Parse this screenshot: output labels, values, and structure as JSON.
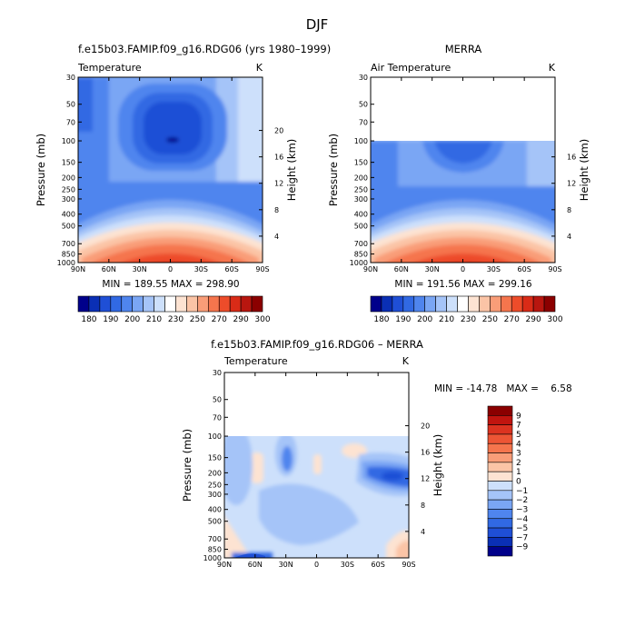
{
  "figure": {
    "title": "DJF",
    "units": "K",
    "pressure_label": "Pressure (mb)",
    "height_label": "Height (km)"
  },
  "panels": [
    {
      "header": "f.e15b03.FAMIP.f09_g16.RDG06 (yrs 1980–1999)",
      "variable": "Temperature",
      "units": "K",
      "stats": "MIN = 189.55   MAX = 298.90"
    },
    {
      "header": "MERRA",
      "variable": "Air Temperature",
      "units": "K",
      "stats": "MIN = 191.56   MAX = 299.16"
    },
    {
      "header": "f.e15b03.FAMIP.f09_g16.RDG06 – MERRA",
      "variable": "Temperature",
      "units": "K",
      "stats": "MIN = -14.78   MAX =    6.58"
    }
  ],
  "colorbar_full": {
    "labels": [
      "180",
      "190",
      "200",
      "210",
      "230",
      "250",
      "270",
      "290",
      "300"
    ],
    "colors": [
      "#00008b",
      "#0a2fb5",
      "#1f4fd6",
      "#3169e3",
      "#4f85ee",
      "#7aa6f4",
      "#a5c4f8",
      "#cde0fb",
      "#ffffff",
      "#fde3d2",
      "#fbc4a6",
      "#f99d78",
      "#f5754d",
      "#ed4c2a",
      "#d92b17",
      "#b8160f",
      "#8b0000"
    ]
  },
  "colorbar_diff": {
    "labels": [
      "9",
      "7",
      "5",
      "4",
      "3",
      "2",
      "1",
      "0",
      "−1",
      "−2",
      "−3",
      "−4",
      "−5",
      "−7",
      "−9"
    ],
    "colors": [
      "#8b0000",
      "#c1150f",
      "#dc3320",
      "#ed5535",
      "#f5754d",
      "#f99d78",
      "#fbc4a6",
      "#fde3d2",
      "#cde0fb",
      "#a5c4f8",
      "#7aa6f4",
      "#4f85ee",
      "#3169e3",
      "#1f4fd6",
      "#0a2fb5",
      "#00008b"
    ]
  },
  "chart_data": [
    {
      "type": "heatmap",
      "title": "Temperature",
      "units": "K",
      "xlabel": "",
      "ylabel": "Pressure (mb)",
      "y2label": "Height (km)",
      "x_ticks": [
        "90N",
        "60N",
        "30N",
        "0",
        "30S",
        "60S",
        "90S"
      ],
      "y_ticks": [
        "30",
        "50",
        "70",
        "100",
        "150",
        "200",
        "250",
        "300",
        "400",
        "500",
        "700",
        "850",
        "1000"
      ],
      "y2_ticks": [
        "20",
        "16",
        "12",
        "8",
        "4"
      ],
      "min": 189.55,
      "max": 298.9
    },
    {
      "type": "heatmap",
      "title": "Air Temperature",
      "units": "K",
      "xlabel": "",
      "ylabel": "Pressure (mb)",
      "y2label": "Height (km)",
      "x_ticks": [
        "90N",
        "60N",
        "30N",
        "0",
        "30S",
        "60S",
        "90S"
      ],
      "y_ticks": [
        "30",
        "50",
        "70",
        "100",
        "150",
        "200",
        "250",
        "300",
        "400",
        "500",
        "700",
        "850",
        "1000"
      ],
      "y2_ticks": [
        "16",
        "12",
        "8",
        "4"
      ],
      "min": 191.56,
      "max": 299.16
    },
    {
      "type": "heatmap",
      "title": "Temperature",
      "units": "K",
      "xlabel": "",
      "ylabel": "Pressure (mb)",
      "y2label": "Height (km)",
      "x_ticks": [
        "90N",
        "60N",
        "30N",
        "0",
        "30S",
        "60S",
        "90S"
      ],
      "y_ticks": [
        "30",
        "50",
        "70",
        "100",
        "150",
        "200",
        "250",
        "300",
        "400",
        "500",
        "700",
        "850",
        "1000"
      ],
      "y2_ticks": [
        "20",
        "16",
        "12",
        "8",
        "4"
      ],
      "min": -14.78,
      "max": 6.58
    }
  ]
}
